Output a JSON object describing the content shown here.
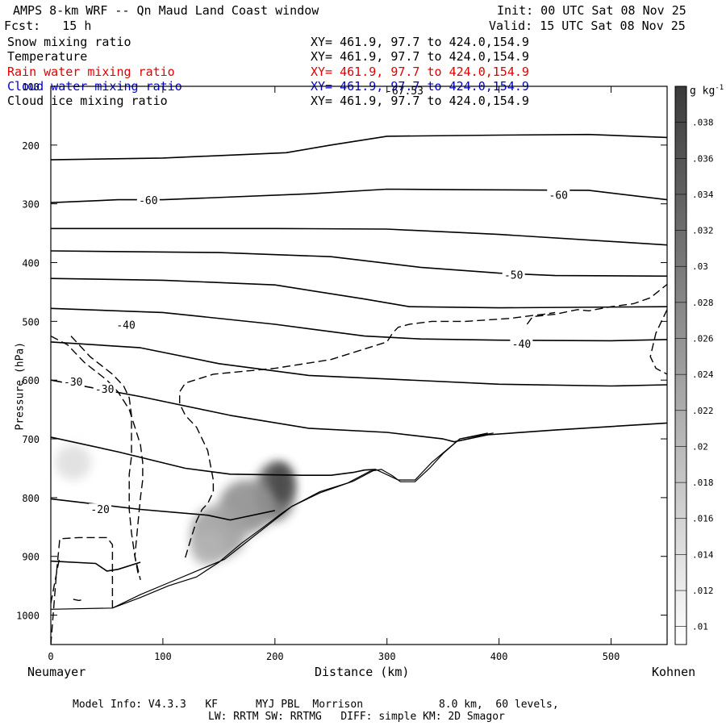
{
  "header": {
    "title": "AMPS 8-km WRF -- Qn Maud Land Coast window",
    "init": "Init: 00 UTC Sat 08 Nov 25",
    "fcst": "Fcst:   15 h",
    "valid": "Valid: 15 UTC Sat 08 Nov 25"
  },
  "fields": [
    {
      "name": "Snow mixing ratio",
      "xy": "XY= 461.9, 97.7 to 424.0,154.9",
      "color": "#000000"
    },
    {
      "name": "Temperature",
      "xy": "XY= 461.9, 97.7 to 424.0,154.9",
      "color": "#000000"
    },
    {
      "name": "Rain water mixing ratio",
      "xy": "XY= 461.9, 97.7 to 424.0,154.9",
      "color": "#e00000"
    },
    {
      "name": "Cloud water mixing ratio",
      "xy": "XY= 461.9, 97.7 to 424.0,154.9",
      "color": "#0000cc"
    },
    {
      "name": "Cloud ice mixing ratio",
      "xy": "XY= 461.9, 97.7 to 424.0,154.9",
      "color": "#000000"
    }
  ],
  "chart_data": {
    "type": "contour-cross-section",
    "xlabel": "Distance (km)",
    "ylabel": "Pressure (hPa)",
    "xlim": [
      0,
      550
    ],
    "ylim": [
      1050,
      100
    ],
    "xticks": [
      0,
      100,
      200,
      300,
      400,
      500
    ],
    "yticks": [
      100,
      200,
      300,
      400,
      500,
      600,
      700,
      800,
      900,
      1000
    ],
    "left_label": "Neumayer",
    "right_label": "Kohnen",
    "peak_label": "-67.53",
    "colorbar": {
      "unit": "g kg",
      "unit_exp": "-1",
      "levels": [
        ".01",
        ".012",
        ".014",
        ".016",
        ".018",
        ".02",
        ".022",
        ".024",
        ".026",
        ".028",
        ".03",
        ".032",
        ".034",
        ".036",
        ".038"
      ],
      "min": 0.009,
      "max": 0.04
    },
    "temperature_labels": [
      {
        "text": "-60",
        "x": 87,
        "p": 295
      },
      {
        "text": "-60",
        "x": 453,
        "p": 286
      },
      {
        "text": "-50",
        "x": 413,
        "p": 422
      },
      {
        "text": "-40",
        "x": 67,
        "p": 507
      },
      {
        "text": "-40",
        "x": 420,
        "p": 539
      },
      {
        "text": "-30",
        "x": 20,
        "p": 604
      },
      {
        "text": "-30",
        "x": 48,
        "p": 616
      },
      {
        "text": "-20",
        "x": 44,
        "p": 821
      }
    ],
    "isotherms": [
      [
        [
          0,
          225
        ],
        [
          70,
          223
        ],
        [
          100,
          222
        ],
        [
          210,
          213
        ],
        [
          250,
          200
        ],
        [
          300,
          185
        ],
        [
          400,
          183
        ],
        [
          480,
          182
        ],
        [
          550,
          187
        ]
      ],
      [
        [
          0,
          298
        ],
        [
          60,
          293
        ],
        [
          100,
          293
        ],
        [
          230,
          283
        ],
        [
          300,
          275
        ],
        [
          370,
          276
        ],
        [
          480,
          277
        ],
        [
          550,
          293
        ]
      ],
      [
        [
          0,
          342
        ],
        [
          200,
          342
        ],
        [
          300,
          343
        ],
        [
          400,
          352
        ],
        [
          500,
          364
        ],
        [
          550,
          370
        ]
      ],
      [
        [
          0,
          380
        ],
        [
          150,
          383
        ],
        [
          250,
          390
        ],
        [
          330,
          408
        ],
        [
          400,
          418
        ],
        [
          450,
          422
        ],
        [
          550,
          423
        ]
      ],
      [
        [
          0,
          427
        ],
        [
          100,
          430
        ],
        [
          200,
          438
        ],
        [
          280,
          462
        ],
        [
          320,
          475
        ],
        [
          400,
          477
        ],
        [
          550,
          475
        ]
      ],
      [
        [
          0,
          478
        ],
        [
          100,
          485
        ],
        [
          200,
          505
        ],
        [
          280,
          525
        ],
        [
          330,
          530
        ],
        [
          400,
          532
        ],
        [
          500,
          533
        ],
        [
          550,
          531
        ]
      ],
      [
        [
          0,
          535
        ],
        [
          80,
          545
        ],
        [
          150,
          572
        ],
        [
          230,
          592
        ],
        [
          300,
          598
        ],
        [
          400,
          607
        ],
        [
          500,
          610
        ],
        [
          550,
          608
        ]
      ],
      [
        [
          0,
          600
        ],
        [
          80,
          628
        ],
        [
          160,
          660
        ],
        [
          230,
          682
        ],
        [
          300,
          689
        ],
        [
          350,
          700
        ],
        [
          360,
          705
        ],
        [
          390,
          693
        ],
        [
          450,
          685
        ],
        [
          550,
          673
        ]
      ],
      [
        [
          0,
          697
        ],
        [
          60,
          722
        ],
        [
          120,
          750
        ],
        [
          160,
          760
        ],
        [
          225,
          762
        ],
        [
          250,
          762
        ],
        [
          270,
          757
        ],
        [
          280,
          753
        ],
        [
          290,
          752
        ]
      ],
      [
        [
          0,
          802
        ],
        [
          80,
          820
        ],
        [
          140,
          830
        ],
        [
          160,
          838
        ],
        [
          200,
          822
        ]
      ],
      [
        [
          0,
          908
        ],
        [
          40,
          912
        ],
        [
          50,
          925
        ],
        [
          60,
          922
        ],
        [
          80,
          910
        ]
      ]
    ],
    "terrain": [
      [
        [
          0,
          990
        ],
        [
          55,
          988
        ],
        [
          80,
          970
        ],
        [
          105,
          950
        ],
        [
          130,
          935
        ],
        [
          150,
          910
        ],
        [
          170,
          878
        ],
        [
          190,
          850
        ],
        [
          205,
          828
        ],
        [
          215,
          815
        ],
        [
          240,
          790
        ],
        [
          265,
          775
        ],
        [
          285,
          755
        ],
        [
          295,
          752
        ],
        [
          305,
          763
        ],
        [
          312,
          773
        ],
        [
          325,
          773
        ],
        [
          338,
          750
        ],
        [
          350,
          725
        ],
        [
          365,
          700
        ],
        [
          390,
          690
        ]
      ],
      [
        [
          55,
          988
        ],
        [
          80,
          965
        ],
        [
          105,
          945
        ],
        [
          130,
          925
        ],
        [
          155,
          905
        ],
        [
          175,
          875
        ],
        [
          195,
          845
        ],
        [
          215,
          815
        ],
        [
          240,
          792
        ],
        [
          270,
          772
        ],
        [
          290,
          752
        ],
        [
          310,
          770
        ],
        [
          325,
          770
        ],
        [
          340,
          740
        ],
        [
          365,
          700
        ],
        [
          395,
          690
        ]
      ]
    ],
    "cloud_ice_dashed": [
      [
        [
          0,
          525
        ],
        [
          15,
          540
        ],
        [
          30,
          570
        ],
        [
          50,
          600
        ],
        [
          60,
          620
        ],
        [
          70,
          650
        ],
        [
          75,
          680
        ],
        [
          80,
          710
        ],
        [
          82,
          740
        ],
        [
          82,
          770
        ],
        [
          80,
          800
        ],
        [
          78,
          840
        ],
        [
          75,
          900
        ],
        [
          80,
          940
        ]
      ],
      [
        [
          18,
          525
        ],
        [
          35,
          560
        ],
        [
          55,
          590
        ],
        [
          65,
          610
        ],
        [
          70,
          630
        ],
        [
          72,
          660
        ],
        [
          72,
          700
        ],
        [
          72,
          730
        ],
        [
          70,
          760
        ],
        [
          70,
          790
        ],
        [
          70,
          820
        ],
        [
          72,
          860
        ],
        [
          75,
          900
        ],
        [
          78,
          930
        ]
      ],
      [
        [
          0,
          1050
        ],
        [
          5,
          930
        ],
        [
          8,
          870
        ],
        [
          25,
          868
        ],
        [
          50,
          868
        ],
        [
          55,
          880
        ],
        [
          55,
          930
        ],
        [
          55,
          988
        ]
      ],
      [
        [
          0,
          980
        ],
        [
          5,
          930
        ],
        [
          8,
          900
        ]
      ],
      [
        [
          20,
          973
        ],
        [
          25,
          975
        ],
        [
          30,
          973
        ]
      ],
      [
        [
          120,
          902
        ],
        [
          125,
          870
        ],
        [
          130,
          840
        ],
        [
          135,
          820
        ],
        [
          140,
          810
        ],
        [
          145,
          790
        ],
        [
          145,
          770
        ],
        [
          140,
          720
        ],
        [
          130,
          680
        ],
        [
          120,
          660
        ],
        [
          115,
          640
        ],
        [
          115,
          620
        ],
        [
          120,
          605
        ],
        [
          145,
          590
        ],
        [
          200,
          580
        ],
        [
          250,
          565
        ],
        [
          300,
          535
        ],
        [
          305,
          520
        ],
        [
          310,
          510
        ],
        [
          320,
          505
        ],
        [
          340,
          500
        ],
        [
          370,
          500
        ],
        [
          410,
          495
        ],
        [
          430,
          490
        ],
        [
          440,
          488
        ],
        [
          450,
          485
        ]
      ],
      [
        [
          425,
          505
        ],
        [
          430,
          492
        ],
        [
          450,
          488
        ],
        [
          470,
          480
        ],
        [
          480,
          482
        ],
        [
          500,
          475
        ],
        [
          520,
          470
        ],
        [
          535,
          460
        ],
        [
          550,
          437
        ]
      ],
      [
        [
          550,
          480
        ],
        [
          540,
          520
        ],
        [
          535,
          560
        ],
        [
          540,
          580
        ],
        [
          550,
          590
        ]
      ]
    ],
    "snow_blobs": [
      {
        "x": 200,
        "p": 790,
        "rx": 18,
        "rp": 50,
        "intensity": 0.75
      },
      {
        "x": 205,
        "p": 775,
        "rx": 12,
        "rp": 35,
        "intensity": 0.95
      },
      {
        "x": 175,
        "p": 815,
        "rx": 25,
        "rp": 45,
        "intensity": 0.55
      },
      {
        "x": 150,
        "p": 858,
        "rx": 25,
        "rp": 45,
        "intensity": 0.45
      },
      {
        "x": 140,
        "p": 885,
        "rx": 15,
        "rp": 30,
        "intensity": 0.35
      },
      {
        "x": 20,
        "p": 740,
        "rx": 16,
        "rp": 30,
        "intensity": 0.1
      }
    ]
  },
  "footer": {
    "line1": "Model Info: V4.3.3   KF      MYJ PBL  Morrison            8.0 km,  60 levels,",
    "line2": "LW: RRTM SW: RRTMG   DIFF: simple KM: 2D Smagor"
  }
}
